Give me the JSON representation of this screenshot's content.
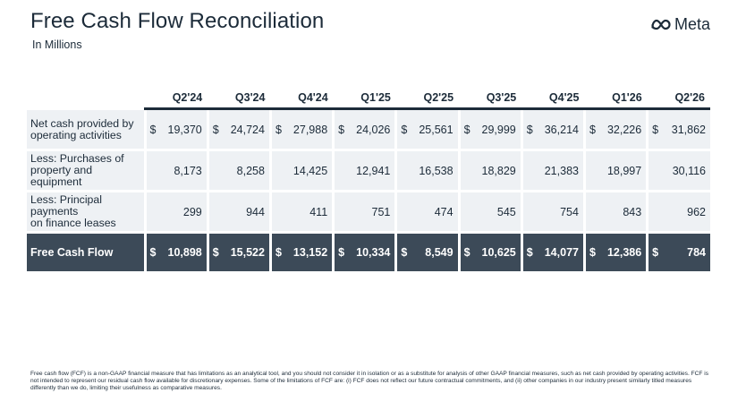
{
  "header": {
    "title": "Free Cash Flow Reconciliation",
    "subtitle": "In Millions",
    "logo_text": "Meta",
    "accent_color": "#1c2b39"
  },
  "table": {
    "columns": [
      "Q2'24",
      "Q3'24",
      "Q4'24",
      "Q1'25",
      "Q2'25",
      "Q3'25",
      "Q4'25",
      "Q1'26",
      "Q2'26"
    ],
    "rows": [
      {
        "label_line1": "Net cash provided by",
        "label_line2": "operating activities",
        "currency": "$",
        "values": [
          "19,370",
          "24,724",
          "27,988",
          "24,026",
          "25,561",
          "29,999",
          "36,214",
          "32,226",
          "31,862"
        ]
      },
      {
        "label_line1": "Less: Purchases of",
        "label_line2": "property and equipment",
        "currency": "",
        "values": [
          "8,173",
          "8,258",
          "14,425",
          "12,941",
          "16,538",
          "18,829",
          "21,383",
          "18,997",
          "30,116"
        ]
      },
      {
        "label_line1": "Less: Principal payments",
        "label_line2": "on finance leases",
        "currency": "",
        "values": [
          "299",
          "944",
          "411",
          "751",
          "474",
          "545",
          "754",
          "843",
          "962"
        ]
      }
    ],
    "total": {
      "label": "Free Cash Flow",
      "currency": "$",
      "values": [
        "10,898",
        "15,522",
        "13,152",
        "10,334",
        "8,549",
        "10,625",
        "14,077",
        "12,386",
        "784"
      ],
      "background": "#3c4a58"
    }
  },
  "footnote": "Free cash flow (FCF) is a non-GAAP financial measure that has limitations as an analytical tool, and you should not consider it in isolation or as a substitute for analysis of other GAAP financial measures, such as net cash provided by operating activities. FCF is not intended to represent our residual cash flow available for discretionary expenses. Some of the limitations of FCF are: (i) FCF does not reflect our future contractual commitments, and (ii) other companies in our industry present similarly titled measures differently than we do, limiting their usefulness as comparative measures."
}
